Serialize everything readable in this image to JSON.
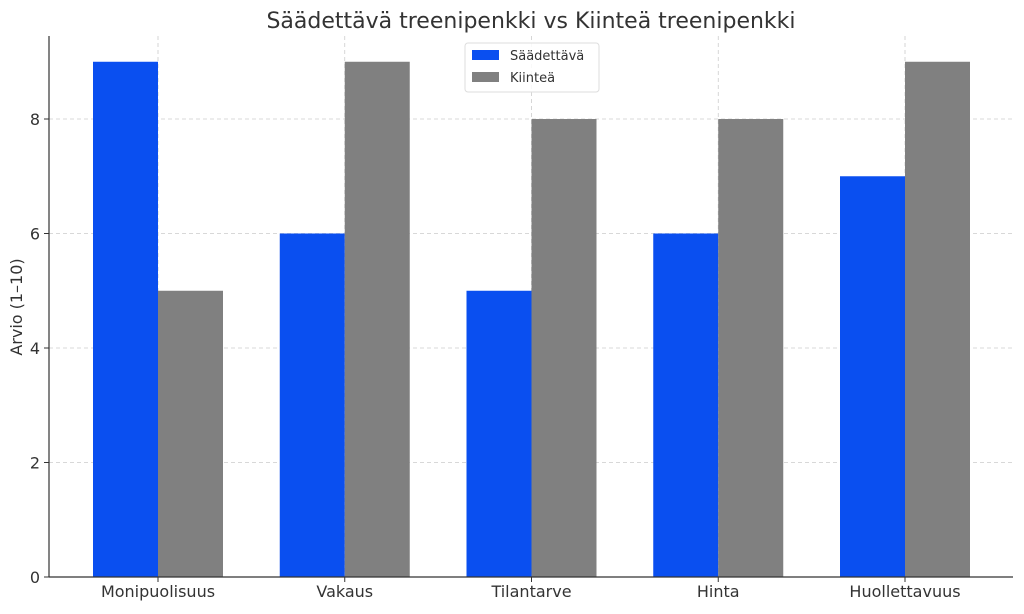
{
  "chart_data": {
    "type": "bar",
    "title": "Säädettävä treenipenkki vs Kiinteä treenipenkki",
    "xlabel": "",
    "ylabel": "Arvio (1–10)",
    "categories": [
      "Monipuolisuus",
      "Vakaus",
      "Tilantarve",
      "Hinta",
      "Huollettavuus"
    ],
    "series": [
      {
        "name": "Säädettävä",
        "values": [
          9,
          6,
          5,
          6,
          7
        ],
        "color": "#0a4ff0"
      },
      {
        "name": "Kiinteä",
        "values": [
          5,
          9,
          8,
          8,
          9
        ],
        "color": "#808080"
      }
    ],
    "ylim": [
      0,
      9.45
    ],
    "yticks": [
      0,
      2,
      4,
      6,
      8
    ],
    "grid": true,
    "legend_position": "top-center"
  }
}
